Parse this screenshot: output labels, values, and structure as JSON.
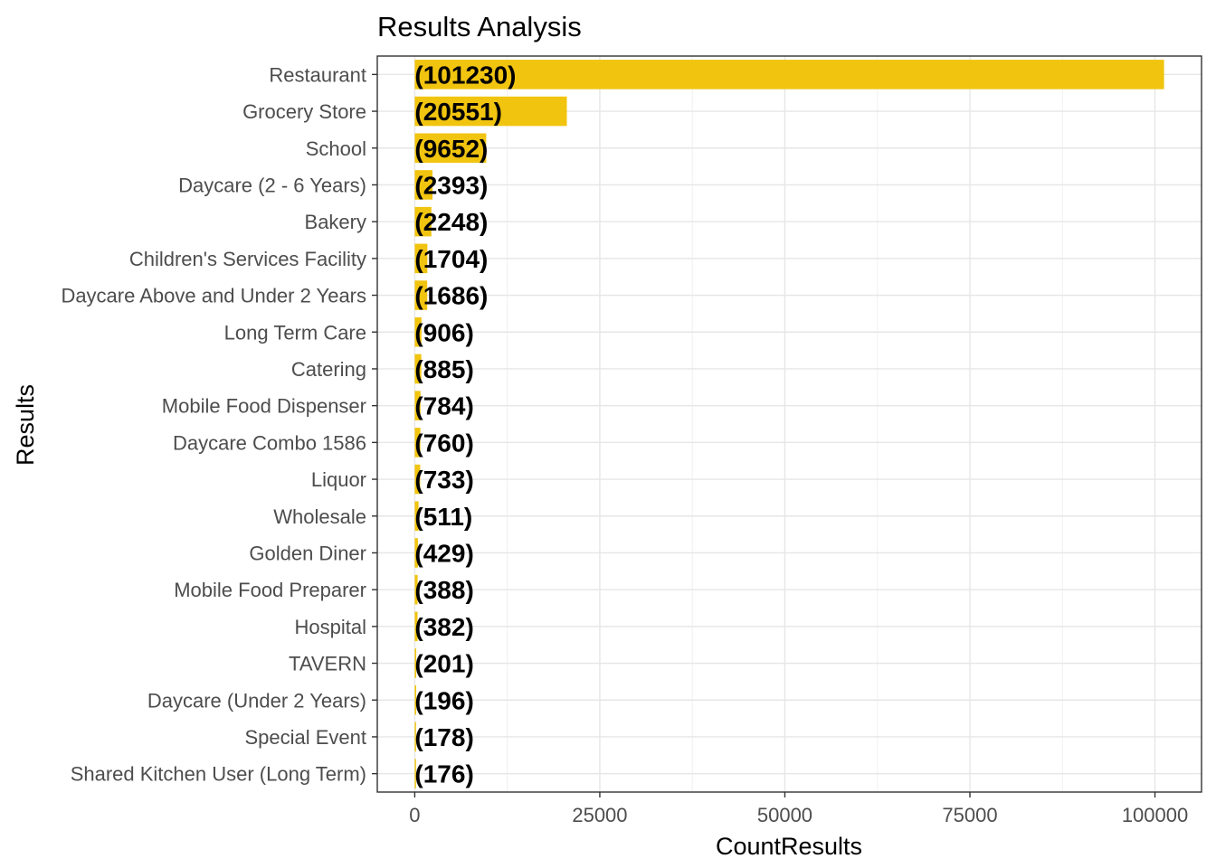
{
  "chart_data": {
    "type": "bar",
    "orientation": "horizontal",
    "title": "Results Analysis",
    "xlabel": "CountResults",
    "ylabel": "Results",
    "categories": [
      "Restaurant",
      "Grocery Store",
      "School",
      "Daycare (2 - 6 Years)",
      "Bakery",
      "Children's Services Facility",
      "Daycare Above and Under 2 Years",
      "Long Term Care",
      "Catering",
      "Mobile Food Dispenser",
      "Daycare Combo 1586",
      "Liquor",
      "Wholesale",
      "Golden Diner",
      "Mobile Food Preparer",
      "Hospital",
      "TAVERN",
      "Daycare (Under 2 Years)",
      "Special Event",
      "Shared Kitchen User (Long Term)"
    ],
    "values": [
      101230,
      20551,
      9652,
      2393,
      2248,
      1704,
      1686,
      906,
      885,
      784,
      760,
      733,
      511,
      429,
      388,
      382,
      201,
      196,
      178,
      176
    ],
    "data_labels": [
      "(101230)",
      "(20551)",
      "(9652)",
      "(2393)",
      "(2248)",
      "(1704)",
      "(1686)",
      "(906)",
      "(885)",
      "(784)",
      "(760)",
      "(733)",
      "(511)",
      "(429)",
      "(388)",
      "(382)",
      "(201)",
      "(196)",
      "(178)",
      "(176)"
    ],
    "xlim": [
      -5061.5,
      106291.5
    ],
    "xticks": [
      0,
      25000,
      50000,
      75000,
      100000
    ],
    "xtick_labels": [
      "0",
      "25000",
      "50000",
      "75000",
      "100000"
    ],
    "bar_color": "#F1C40F",
    "grid": true,
    "legend": "none"
  }
}
